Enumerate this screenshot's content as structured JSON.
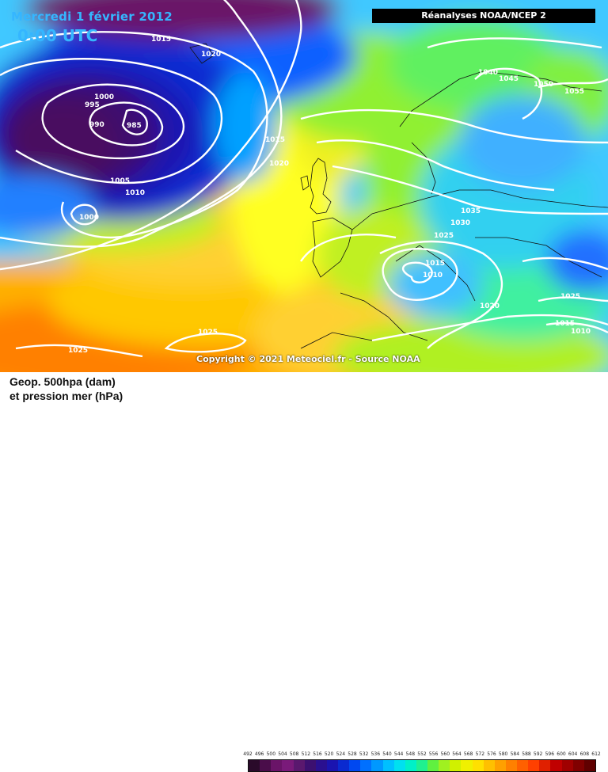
{
  "header": {
    "date": "Mercredi 1 février 2012",
    "time": "0:00 UTC",
    "source": "Réanalyses NOAA/NCEP 2"
  },
  "copyright": "Copyright © 2021 Meteociel.fr - Source NOAA",
  "legend": {
    "line1": "Geop. 500hpa (dam)",
    "line2": "et pression mer (hPa)"
  },
  "scale": {
    "ticks": [
      "492",
      "496",
      "500",
      "504",
      "508",
      "512",
      "516",
      "520",
      "524",
      "528",
      "532",
      "536",
      "540",
      "544",
      "548",
      "552",
      "556",
      "560",
      "564",
      "568",
      "572",
      "576",
      "580",
      "584",
      "588",
      "592",
      "596",
      "600",
      "604",
      "608",
      "612"
    ],
    "colors": [
      "#2a0a2a",
      "#4a0d4a",
      "#6a1468",
      "#7a1a7a",
      "#5a186e",
      "#3c1070",
      "#2a1090",
      "#1a14b0",
      "#0a2ad0",
      "#0048f0",
      "#0070ff",
      "#0098ff",
      "#00c0ff",
      "#00e0f0",
      "#00f0c8",
      "#20f090",
      "#60f040",
      "#a0f020",
      "#d0f000",
      "#f0f000",
      "#ffe000",
      "#ffc000",
      "#ffa000",
      "#ff8000",
      "#ff6000",
      "#ff4000",
      "#e02000",
      "#c00000",
      "#a00000",
      "#800000",
      "#600000"
    ]
  },
  "isobar_labels": [
    "1015",
    "1020",
    "1000",
    "995",
    "990",
    "985",
    "1005",
    "1010",
    "1000",
    "1015",
    "1020",
    "1040",
    "1045",
    "1050",
    "1055",
    "1035",
    "1030",
    "1025",
    "1015",
    "1010",
    "1020",
    "1025",
    "1015",
    "1010",
    "1025",
    "1025"
  ]
}
